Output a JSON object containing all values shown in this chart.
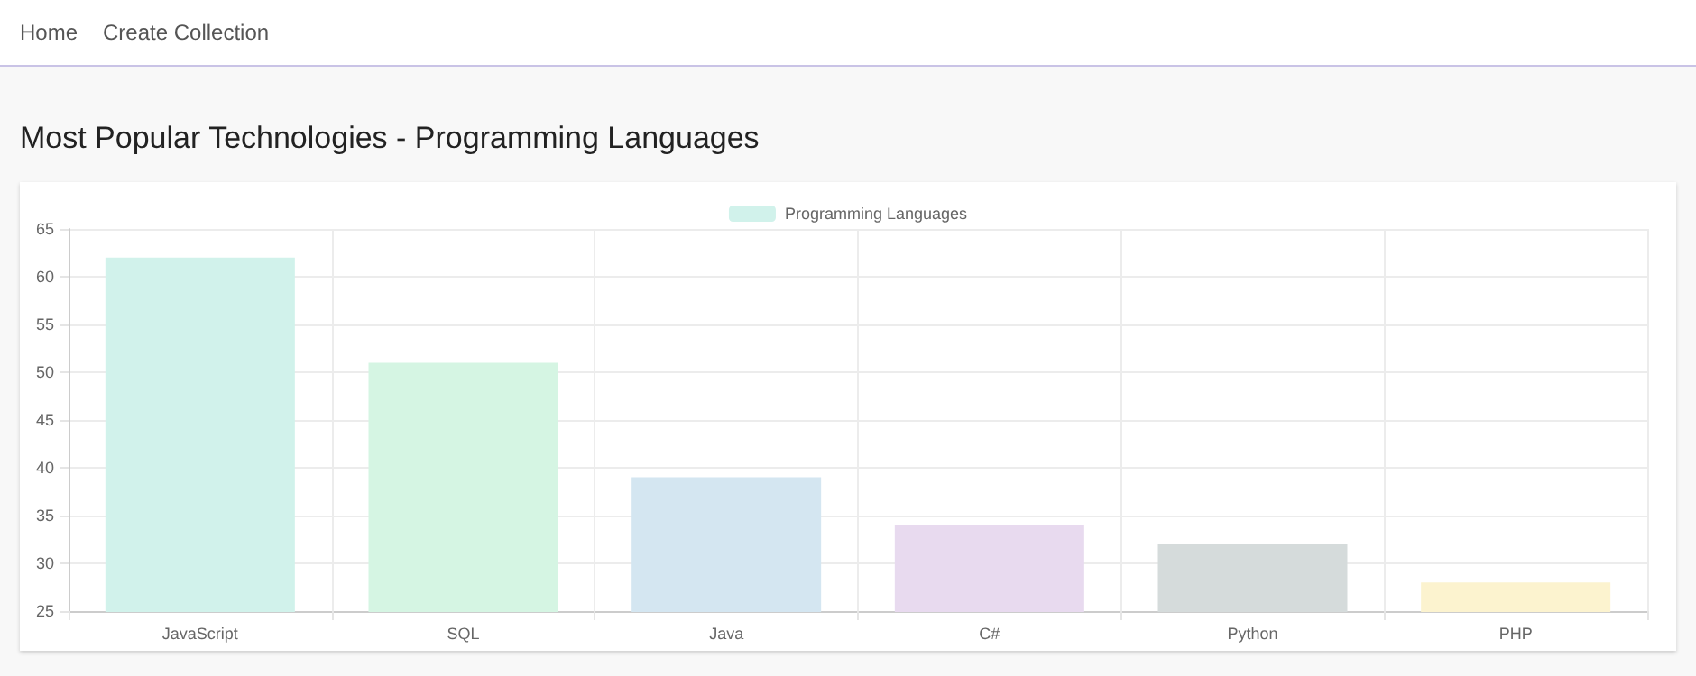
{
  "chart_data": {
    "type": "bar",
    "title": "Most Popular Technologies - Programming Languages",
    "annotations": [
      "Home",
      "Create Collection"
    ],
    "categories": [
      "JavaScript",
      "SQL",
      "Java",
      "C#",
      "Python",
      "PHP"
    ],
    "series": [
      {
        "name": "Programming Languages",
        "color": "#d1f2eb",
        "colors": [
          "#d1f2eb",
          "#d5f5e3",
          "#d4e6f1",
          "#e8daef",
          "#d5dbdb",
          "#fcf3cf"
        ],
        "values": [
          62,
          51,
          39,
          34,
          32,
          28
        ]
      }
    ],
    "ylim": [
      25,
      65
    ],
    "yticks": [
      25,
      30,
      35,
      40,
      45,
      50,
      55,
      60,
      65
    ],
    "grid": true,
    "legend": "top"
  }
}
